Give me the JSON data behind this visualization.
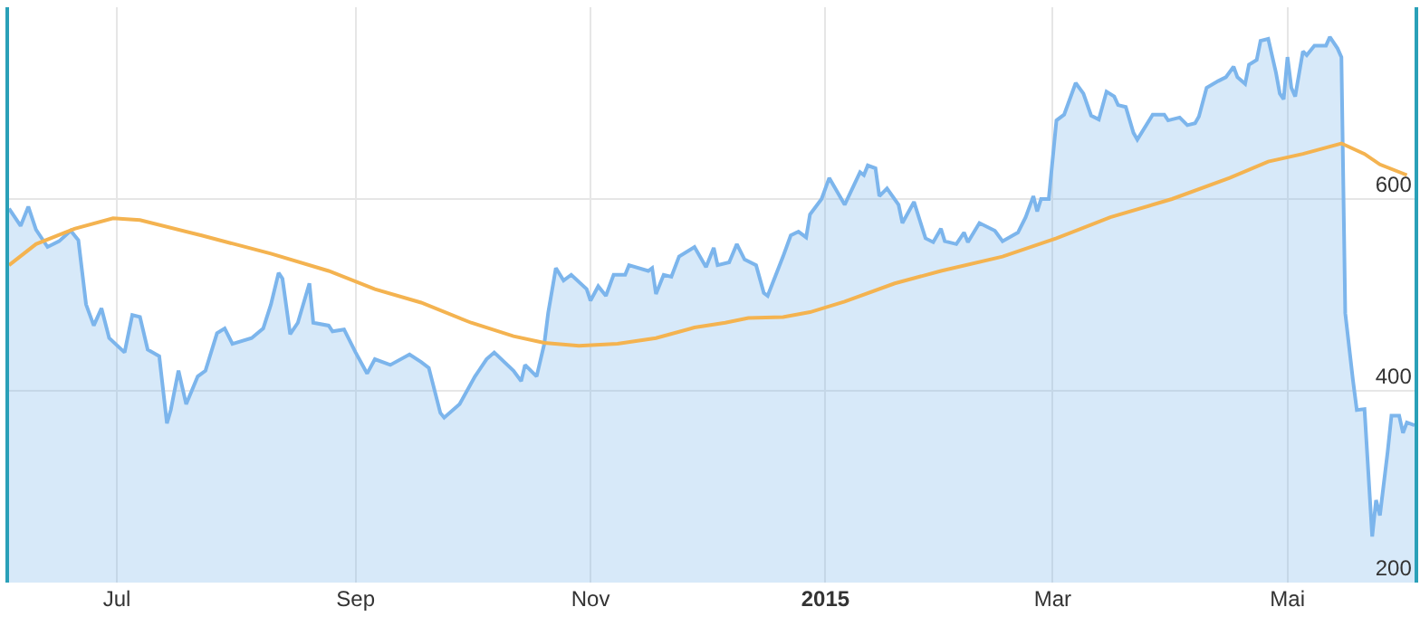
{
  "chart_data": {
    "type": "line",
    "xlim": [
      "2014-06-03",
      "2015-06-03"
    ],
    "xticks": [
      {
        "value": "2014-07-01",
        "label": "Jul"
      },
      {
        "value": "2014-09-01",
        "label": "Sep"
      },
      {
        "value": "2014-11-01",
        "label": "Nov"
      },
      {
        "value": "2015-01-01",
        "label": "2015"
      },
      {
        "value": "2015-03-01",
        "label": "Mar"
      },
      {
        "value": "2015-05-01",
        "label": "Mai"
      }
    ],
    "ylim": [
      200,
      800
    ],
    "yticks": [
      200,
      400,
      600
    ],
    "grid": true,
    "marker": "none",
    "line_style": "solid",
    "series": [
      {
        "type": "area",
        "color": "#7cb5ec",
        "x": [
          "2014-06-03",
          "2014-06-06",
          "2014-06-08",
          "2014-06-10",
          "2014-06-13",
          "2014-06-16",
          "2014-06-19",
          "2014-06-21",
          "2014-06-23",
          "2014-06-25",
          "2014-06-27",
          "2014-06-29",
          "2014-07-03",
          "2014-07-05",
          "2014-07-07",
          "2014-07-09",
          "2014-07-12",
          "2014-07-14",
          "2014-07-15",
          "2014-07-17",
          "2014-07-19",
          "2014-07-22",
          "2014-07-24",
          "2014-07-27",
          "2014-07-29",
          "2014-07-31",
          "2014-08-05",
          "2014-08-08",
          "2014-08-10",
          "2014-08-12",
          "2014-08-13",
          "2014-08-15",
          "2014-08-17",
          "2014-08-20",
          "2014-08-21",
          "2014-08-25",
          "2014-08-26",
          "2014-08-29",
          "2014-09-01",
          "2014-09-04",
          "2014-09-06",
          "2014-09-10",
          "2014-09-15",
          "2014-09-18",
          "2014-09-20",
          "2014-09-23",
          "2014-09-24",
          "2014-09-28",
          "2014-10-02",
          "2014-10-03",
          "2014-10-05",
          "2014-10-07",
          "2014-10-12",
          "2014-10-14",
          "2014-10-15",
          "2014-10-18",
          "2014-10-20",
          "2014-10-21",
          "2014-10-23",
          "2014-10-25",
          "2014-10-27",
          "2014-10-31",
          "2014-11-01",
          "2014-11-03",
          "2014-11-05",
          "2014-11-07",
          "2014-11-10",
          "2014-11-11",
          "2014-11-16",
          "2014-11-17",
          "2014-11-18",
          "2014-11-20",
          "2014-11-22",
          "2014-11-24",
          "2014-11-28",
          "2014-12-01",
          "2014-12-03",
          "2014-12-04",
          "2014-12-07",
          "2014-12-09",
          "2014-12-11",
          "2014-12-14",
          "2014-12-16",
          "2014-12-17",
          "2014-12-21",
          "2014-12-23",
          "2014-12-25",
          "2014-12-27",
          "2014-12-28",
          "2014-12-31",
          "2015-01-02",
          "2015-01-06",
          "2015-01-10",
          "2015-01-11",
          "2015-01-12",
          "2015-01-14",
          "2015-01-15",
          "2015-01-17",
          "2015-01-20",
          "2015-01-21",
          "2015-01-24",
          "2015-01-27",
          "2015-01-29",
          "2015-01-31",
          "2015-02-01",
          "2015-02-04",
          "2015-02-06",
          "2015-02-07",
          "2015-02-10",
          "2015-02-14",
          "2015-02-16",
          "2015-02-20",
          "2015-02-22",
          "2015-02-24",
          "2015-02-25",
          "2015-02-26",
          "2015-02-28",
          "2015-03-02",
          "2015-03-04",
          "2015-03-07",
          "2015-03-09",
          "2015-03-11",
          "2015-03-13",
          "2015-03-15",
          "2015-03-17",
          "2015-03-18",
          "2015-03-20",
          "2015-03-22",
          "2015-03-23",
          "2015-03-27",
          "2015-03-30",
          "2015-03-31",
          "2015-04-03",
          "2015-04-05",
          "2015-04-07",
          "2015-04-08",
          "2015-04-10",
          "2015-04-13",
          "2015-04-15",
          "2015-04-17",
          "2015-04-18",
          "2015-04-20",
          "2015-04-21",
          "2015-04-23",
          "2015-04-24",
          "2015-04-26",
          "2015-04-28",
          "2015-04-29",
          "2015-04-30",
          "2015-05-01",
          "2015-05-02",
          "2015-05-03",
          "2015-05-05",
          "2015-05-06",
          "2015-05-08",
          "2015-05-11",
          "2015-05-12",
          "2015-05-14",
          "2015-05-15",
          "2015-05-16",
          "2015-05-18",
          "2015-05-19",
          "2015-05-21",
          "2015-05-23",
          "2015-05-24",
          "2015-05-25",
          "2015-05-27",
          "2015-05-28",
          "2015-05-30",
          "2015-05-31",
          "2015-06-01",
          "2015-06-03"
        ],
        "values": [
          590,
          572,
          592,
          568,
          550,
          556,
          567,
          557,
          490,
          468,
          486,
          455,
          440,
          479,
          477,
          443,
          436,
          366,
          380,
          421,
          386,
          415,
          421,
          460,
          465,
          449,
          455,
          465,
          490,
          523,
          517,
          459,
          471,
          512,
          471,
          468,
          462,
          464,
          440,
          418,
          433,
          427,
          438,
          430,
          424,
          377,
          372,
          386,
          415,
          421,
          433,
          440,
          421,
          410,
          427,
          415,
          449,
          481,
          528,
          515,
          521,
          506,
          494,
          509,
          499,
          521,
          521,
          531,
          525,
          528,
          501,
          521,
          519,
          540,
          550,
          529,
          549,
          531,
          534,
          553,
          537,
          531,
          502,
          499,
          540,
          562,
          566,
          560,
          584,
          600,
          622,
          594,
          628,
          625,
          635,
          632,
          603,
          611,
          594,
          575,
          597,
          559,
          555,
          569,
          556,
          553,
          565,
          555,
          575,
          567,
          556,
          565,
          581,
          603,
          587,
          600,
          600,
          682,
          688,
          721,
          710,
          687,
          683,
          712,
          707,
          698,
          696,
          669,
          662,
          688,
          688,
          682,
          685,
          677,
          679,
          686,
          716,
          723,
          727,
          738,
          727,
          720,
          740,
          745,
          765,
          767,
          732,
          710,
          704,
          748,
          716,
          707,
          754,
          750,
          760,
          760,
          769,
          757,
          748,
          481,
          411,
          380,
          381,
          248,
          286,
          270,
          336,
          374,
          374,
          356,
          367,
          364
        ]
      },
      {
        "color": "#f4b350",
        "x": [
          "2014-06-03",
          "2014-06-10",
          "2014-06-20",
          "2014-06-30",
          "2014-07-07",
          "2014-07-23",
          "2014-08-10",
          "2014-08-25",
          "2014-09-06",
          "2014-09-18",
          "2014-10-01",
          "2014-10-12",
          "2014-10-20",
          "2014-10-29",
          "2014-11-08",
          "2014-11-18",
          "2014-11-28",
          "2014-12-06",
          "2014-12-12",
          "2014-12-21",
          "2014-12-28",
          "2015-01-06",
          "2015-01-19",
          "2015-01-31",
          "2015-02-16",
          "2015-03-02",
          "2015-03-16",
          "2015-04-01",
          "2015-04-16",
          "2015-04-26",
          "2015-05-05",
          "2015-05-15",
          "2015-05-21",
          "2015-05-25",
          "2015-06-01"
        ],
        "values": [
          531,
          553,
          569,
          580,
          578,
          562,
          543,
          525,
          506,
          492,
          471,
          457,
          450,
          447,
          449,
          455,
          466,
          471,
          476,
          477,
          482,
          493,
          512,
          525,
          540,
          559,
          581,
          600,
          622,
          639,
          647,
          658,
          647,
          636,
          625
        ]
      }
    ]
  }
}
